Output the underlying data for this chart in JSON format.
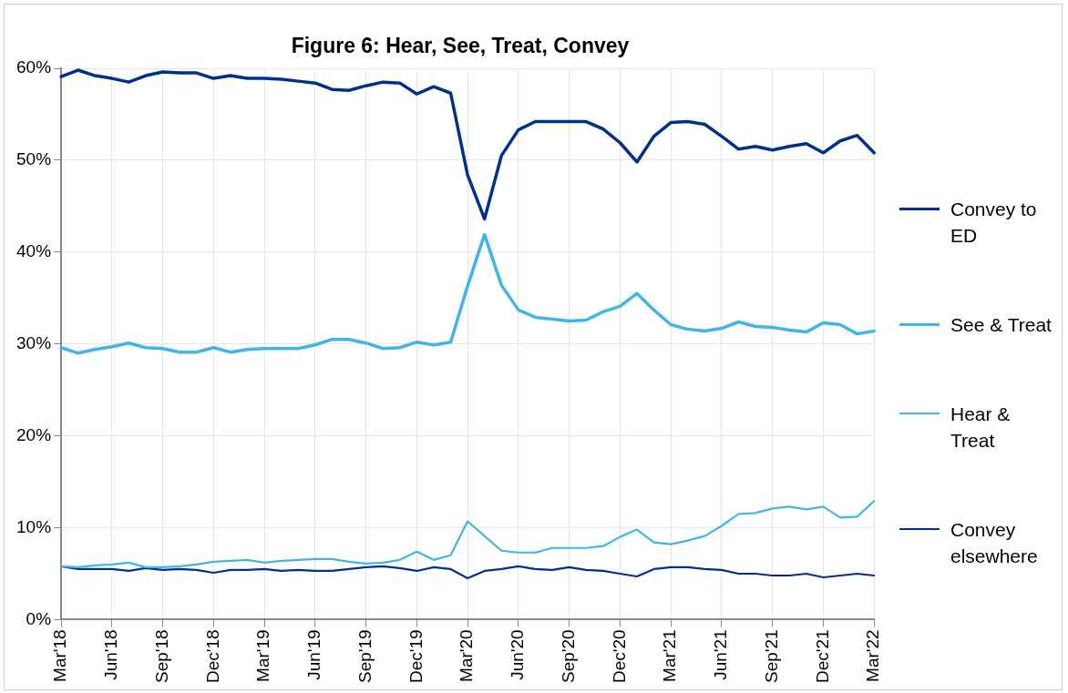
{
  "chart_data": {
    "type": "line",
    "title": "Figure 6: Hear, See, Treat, Convey",
    "categories": [
      "Mar'18",
      null,
      null,
      "Jun'18",
      null,
      null,
      "Sep'18",
      null,
      null,
      "Dec'18",
      null,
      null,
      "Mar'19",
      null,
      null,
      "Jun'19",
      null,
      null,
      "Sep'19",
      null,
      null,
      "Dec'19",
      null,
      null,
      "Mar'20",
      null,
      null,
      "Jun'20",
      null,
      null,
      "Sep'20",
      null,
      null,
      "Dec'20",
      null,
      null,
      "Mar'21",
      null,
      null,
      "Jun'21",
      null,
      null,
      "Sep'21",
      null,
      null,
      "Dec'21",
      null,
      null,
      "Mar'22"
    ],
    "series": [
      {
        "name": "Convey to ED",
        "color": "#003087",
        "values": [
          59.1,
          59.8,
          59.2,
          58.9,
          58.5,
          59.2,
          59.6,
          59.5,
          59.5,
          58.9,
          59.2,
          58.9,
          58.9,
          58.8,
          58.6,
          58.4,
          57.7,
          57.6,
          58.1,
          58.5,
          58.4,
          57.2,
          58.0,
          57.3,
          48.4,
          43.6,
          50.5,
          53.3,
          54.2,
          54.2,
          54.2,
          54.2,
          53.4,
          51.9,
          49.8,
          52.6,
          54.1,
          54.2,
          53.9,
          52.6,
          51.2,
          51.5,
          51.1,
          51.5,
          51.8,
          50.8,
          52.1,
          52.7,
          50.8
        ]
      },
      {
        "name": "See & Treat",
        "color": "#41b6e6",
        "values": [
          29.6,
          29.0,
          29.4,
          29.7,
          30.1,
          29.6,
          29.5,
          29.1,
          29.1,
          29.6,
          29.1,
          29.4,
          29.5,
          29.5,
          29.5,
          29.9,
          30.5,
          30.5,
          30.1,
          29.5,
          29.6,
          30.2,
          29.9,
          30.2,
          36.3,
          41.9,
          36.4,
          33.7,
          32.9,
          32.7,
          32.5,
          32.6,
          33.5,
          34.1,
          35.5,
          33.7,
          32.1,
          31.6,
          31.4,
          31.7,
          32.4,
          31.9,
          31.8,
          31.5,
          31.3,
          32.3,
          32.1,
          31.1,
          31.4
        ]
      },
      {
        "name": "Hear & Treat",
        "color": "#41b6e6",
        "values": [
          5.8,
          5.7,
          5.9,
          6.0,
          6.2,
          5.7,
          5.7,
          5.8,
          6.0,
          6.3,
          6.4,
          6.5,
          6.2,
          6.4,
          6.5,
          6.6,
          6.6,
          6.3,
          6.1,
          6.2,
          6.5,
          7.4,
          6.5,
          7.0,
          10.7,
          9.1,
          7.5,
          7.3,
          7.3,
          7.8,
          7.8,
          7.8,
          8.0,
          9.0,
          9.8,
          8.4,
          8.2,
          8.6,
          9.1,
          10.2,
          11.5,
          11.6,
          12.1,
          12.3,
          12.0,
          12.3,
          11.1,
          11.2,
          12.9
        ]
      },
      {
        "name": "Convey elsewhere",
        "color": "#003087",
        "values": [
          5.8,
          5.5,
          5.5,
          5.5,
          5.3,
          5.6,
          5.4,
          5.5,
          5.4,
          5.1,
          5.4,
          5.4,
          5.5,
          5.3,
          5.4,
          5.3,
          5.3,
          5.5,
          5.7,
          5.8,
          5.6,
          5.3,
          5.7,
          5.5,
          4.5,
          5.3,
          5.5,
          5.8,
          5.5,
          5.4,
          5.7,
          5.4,
          5.3,
          5.0,
          4.7,
          5.5,
          5.7,
          5.7,
          5.5,
          5.4,
          5.0,
          5.0,
          4.8,
          4.8,
          5.0,
          4.6,
          4.8,
          5.0,
          4.8
        ]
      }
    ],
    "ylim": [
      0,
      60
    ],
    "yticks": [
      {
        "value": 0,
        "label": "0%"
      },
      {
        "value": 10,
        "label": "10%"
      },
      {
        "value": 20,
        "label": "20%"
      },
      {
        "value": 30,
        "label": "30%"
      },
      {
        "value": 40,
        "label": "40%"
      },
      {
        "value": 50,
        "label": "50%"
      },
      {
        "value": 60,
        "label": "60%"
      }
    ],
    "grid": true,
    "legend": "right",
    "marker": "none",
    "line_style": "solid"
  }
}
